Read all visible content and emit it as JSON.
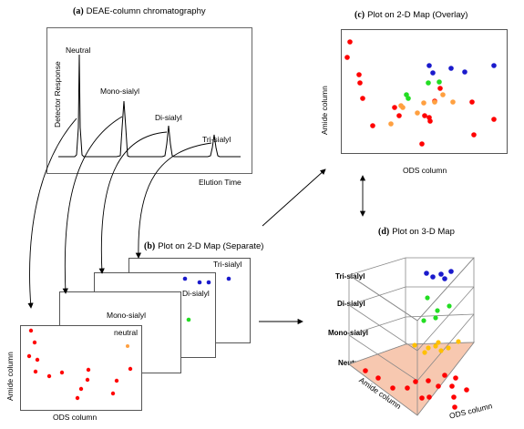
{
  "panel_a": {
    "letter": "(a)",
    "title": "DEAE-column chromatography",
    "y_label": "Detector Response",
    "x_label": "Elution Time",
    "peaks": [
      "Neutral",
      "Mono-sialyl",
      "Di-sialyl",
      "Tri-sialyl"
    ]
  },
  "panel_b": {
    "letter": "(b)",
    "title": "Plot on 2-D Map (Separate)",
    "cards": [
      "neutral",
      "Mono-sialyl",
      "Di-sialyl",
      "Tri-sialyl"
    ],
    "x_label": "ODS column",
    "y_label": "Amide column"
  },
  "panel_c": {
    "letter": "(c)",
    "title": "Plot on 2-D Map (Overlay)",
    "x_label": "ODS column",
    "y_label": "Amide column"
  },
  "panel_d": {
    "letter": "(d)",
    "title": "Plot on 3-D Map",
    "levels": [
      "Tri-sialyl",
      "Di-sialyl",
      "Mono-sialyl",
      "Neutral"
    ],
    "x_label": "ODS column",
    "z_label": "Amide column"
  },
  "colors": {
    "neutral": "#ff0000",
    "mono": "#ffa040",
    "mono_3d": "#ffc000",
    "di": "#22dd22",
    "tri": "#1a1acc",
    "floor": "#f7c8b0"
  }
}
